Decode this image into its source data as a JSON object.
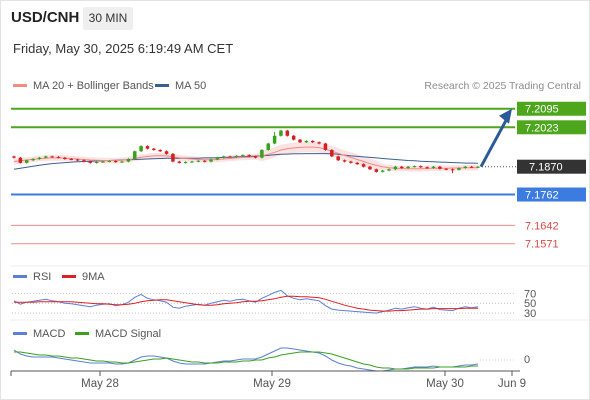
{
  "header": {
    "symbol": "USD/CNH",
    "timeframe": "30 MIN",
    "datetime": "Friday, May 30, 2025 6:19:49 AM CET"
  },
  "legend": {
    "main": [
      {
        "label": "MA 20 + Bollinger Bands",
        "color": "#f28b82"
      },
      {
        "label": "MA 50",
        "color": "#3a5f95"
      }
    ],
    "rsi": [
      {
        "label": "RSI",
        "color": "#5b7fd6"
      },
      {
        "label": "9MA",
        "color": "#e02020"
      }
    ],
    "macd": [
      {
        "label": "MACD",
        "color": "#5b7fd6"
      },
      {
        "label": "MACD Signal",
        "color": "#3aa01d"
      }
    ]
  },
  "watermark": "Research © 2025 Trading Central",
  "colors": {
    "up": "#3aa01d",
    "down": "#d42020",
    "resistance": "#4ea61c",
    "support": "#3c7be0",
    "target": "#f08a8a",
    "arrow": "#2a5a9a",
    "band": "#fadede"
  },
  "chart_data": [
    {
      "type": "candlestick",
      "pane": "price",
      "ylim": [
        7.15,
        7.216
      ],
      "x_ticks": [
        "May 28",
        "May 29",
        "May 30",
        "Jun 9"
      ],
      "current_price": "7.1870",
      "levels": [
        {
          "label": "7.2095",
          "value": 7.2095,
          "kind": "resistance",
          "badge": true
        },
        {
          "label": "7.2023",
          "value": 7.2023,
          "kind": "resistance",
          "badge": true
        },
        {
          "label": "7.1762",
          "value": 7.1762,
          "kind": "support",
          "badge": true
        },
        {
          "label": "7.1642",
          "value": 7.1642,
          "kind": "target",
          "badge": false
        },
        {
          "label": "7.1571",
          "value": 7.1571,
          "kind": "target",
          "badge": false
        }
      ],
      "forecast": {
        "from": 7.187,
        "to": 7.2095
      },
      "close": [
        7.1905,
        7.1885,
        7.1895,
        7.19,
        7.1905,
        7.191,
        7.1908,
        7.1905,
        7.19,
        7.1898,
        7.1895,
        7.189,
        7.1885,
        7.1888,
        7.189,
        7.1892,
        7.1888,
        7.189,
        7.19,
        7.193,
        7.195,
        7.194,
        7.1935,
        7.193,
        7.192,
        7.189,
        7.1885,
        7.1888,
        7.189,
        7.1893,
        7.189,
        7.1898,
        7.1905,
        7.191,
        7.1908,
        7.1912,
        7.1915,
        7.191,
        7.1905,
        7.1935,
        7.196,
        7.199,
        7.201,
        7.199,
        7.1975,
        7.1965,
        7.197,
        7.1965,
        7.196,
        7.1935,
        7.191,
        7.1895,
        7.189,
        7.1885,
        7.188,
        7.187,
        7.186,
        7.185,
        7.1855,
        7.186,
        7.187,
        7.1865,
        7.187,
        7.1872,
        7.1868,
        7.1865,
        7.187,
        7.1862,
        7.186,
        7.1858,
        7.1865,
        7.187,
        7.1868,
        7.187
      ],
      "series": [
        {
          "name": "MA 50",
          "values": [
            7.186,
            7.1864,
            7.1868,
            7.1872,
            7.1876,
            7.1879,
            7.1882,
            7.1884,
            7.1886,
            7.1888,
            7.1889,
            7.189,
            7.1891,
            7.1892,
            7.1893,
            7.1894,
            7.1895,
            7.1896,
            7.1897,
            7.1898,
            7.1899,
            7.19,
            7.1901,
            7.1902,
            7.1903,
            7.1903,
            7.1903,
            7.1903,
            7.1903,
            7.1903,
            7.1904,
            7.1904,
            7.1905,
            7.1906,
            7.1907,
            7.1908,
            7.1909,
            7.191,
            7.1911,
            7.1912,
            7.1914,
            7.1916,
            7.1918,
            7.1919,
            7.192,
            7.192,
            7.1921,
            7.1921,
            7.1921,
            7.1921,
            7.192,
            7.1918,
            7.1915,
            7.1912,
            7.191,
            7.1908,
            7.1906,
            7.1904,
            7.1902,
            7.19,
            7.1898,
            7.1896,
            7.1894,
            7.1893,
            7.1891,
            7.189,
            7.1889,
            7.1888,
            7.1887,
            7.1886,
            7.1885,
            7.1884,
            7.1884,
            7.1883
          ]
        },
        {
          "name": "MA 20",
          "values": [
            7.189,
            7.1893,
            7.1896,
            7.1899,
            7.1901,
            7.1903,
            7.1904,
            7.1904,
            7.1903,
            7.1902,
            7.19,
            7.1898,
            7.1896,
            7.1895,
            7.1894,
            7.1894,
            7.1894,
            7.1895,
            7.1897,
            7.1902,
            7.1907,
            7.191,
            7.1912,
            7.1913,
            7.1912,
            7.1909,
            7.1905,
            7.1902,
            7.19,
            7.1898,
            7.1897,
            7.1897,
            7.1898,
            7.19,
            7.1902,
            7.1904,
            7.1906,
            7.1907,
            7.1908,
            7.1912,
            7.1918,
            7.1926,
            7.1935,
            7.194,
            7.1943,
            7.1945,
            7.1946,
            7.1946,
            7.1944,
            7.1938,
            7.193,
            7.1922,
            7.1914,
            7.1906,
            7.1898,
            7.189,
            7.1882,
            7.1875,
            7.187,
            7.1866,
            7.1864,
            7.1863,
            7.1862,
            7.1862,
            7.1862,
            7.1863,
            7.1864,
            7.1864,
            7.1864,
            7.1865,
            7.1865,
            7.1866,
            7.1866,
            7.1866
          ]
        }
      ]
    },
    {
      "type": "line",
      "pane": "rsi",
      "y_ticks": [
        "70",
        "50",
        "30"
      ],
      "series": [
        {
          "name": "RSI",
          "values": [
            55,
            48,
            52,
            54,
            56,
            58,
            55,
            53,
            50,
            49,
            47,
            45,
            43,
            46,
            48,
            49,
            45,
            47,
            52,
            62,
            68,
            60,
            57,
            55,
            52,
            42,
            40,
            44,
            46,
            48,
            46,
            50,
            53,
            56,
            54,
            57,
            58,
            55,
            52,
            60,
            66,
            72,
            76,
            65,
            60,
            57,
            59,
            57,
            55,
            45,
            38,
            36,
            35,
            34,
            33,
            32,
            31,
            30,
            33,
            36,
            40,
            38,
            41,
            43,
            40,
            38,
            42,
            37,
            36,
            35,
            40,
            43,
            41,
            43
          ]
        },
        {
          "name": "9MA",
          "values": [
            52,
            52,
            52,
            52,
            53,
            53,
            53,
            53,
            53,
            53,
            52,
            51,
            50,
            49,
            49,
            48,
            47,
            47,
            48,
            50,
            53,
            55,
            56,
            57,
            57,
            55,
            53,
            51,
            49,
            47,
            46,
            46,
            47,
            49,
            50,
            51,
            53,
            54,
            54,
            55,
            57,
            59,
            62,
            64,
            64,
            63,
            63,
            62,
            61,
            58,
            54,
            50,
            46,
            43,
            40,
            38,
            36,
            35,
            34,
            34,
            35,
            35,
            36,
            37,
            38,
            38,
            39,
            39,
            39,
            39,
            39,
            40,
            40,
            40
          ]
        }
      ]
    },
    {
      "type": "line",
      "pane": "macd",
      "y_ticks": [
        "0"
      ],
      "series": [
        {
          "name": "MACD",
          "values": [
            0.001,
            0.0006,
            0.0004,
            0.0003,
            0.0003,
            0.0003,
            0.0003,
            0.0002,
            0.0001,
            0.0,
            -0.0001,
            -0.0002,
            -0.0003,
            -0.0003,
            -0.0003,
            -0.0003,
            -0.0004,
            -0.0004,
            -0.0003,
            0.0,
            0.0003,
            0.0004,
            0.0004,
            0.0003,
            0.0002,
            -0.0001,
            -0.0003,
            -0.0004,
            -0.0004,
            -0.0004,
            -0.0004,
            -0.0003,
            -0.0002,
            -0.0001,
            -0.0001,
            0.0,
            0.0001,
            0.0001,
            0.0001,
            0.0003,
            0.0006,
            0.0009,
            0.0012,
            0.0012,
            0.0011,
            0.001,
            0.0009,
            0.0008,
            0.0007,
            0.0004,
            0.0,
            -0.0003,
            -0.0005,
            -0.0006,
            -0.0008,
            -0.0009,
            -0.001,
            -0.0011,
            -0.0011,
            -0.001,
            -0.0009,
            -0.0009,
            -0.0008,
            -0.0007,
            -0.0007,
            -0.0007,
            -0.0006,
            -0.0007,
            -0.0007,
            -0.0007,
            -0.0006,
            -0.0005,
            -0.0005,
            -0.0004
          ]
        },
        {
          "name": "MACD Signal",
          "values": [
            0.0008,
            0.0008,
            0.0007,
            0.0006,
            0.0005,
            0.0005,
            0.0004,
            0.0004,
            0.0003,
            0.0002,
            0.0002,
            0.0001,
            0.0,
            -0.0001,
            -0.0001,
            -0.0002,
            -0.0002,
            -0.0003,
            -0.0003,
            -0.0002,
            -0.0001,
            0.0,
            0.0001,
            0.0001,
            0.0002,
            0.0001,
            0.0,
            -0.0001,
            -0.0002,
            -0.0002,
            -0.0003,
            -0.0003,
            -0.0003,
            -0.0002,
            -0.0002,
            -0.0002,
            -0.0001,
            -0.0001,
            0.0,
            0.0,
            0.0002,
            0.0003,
            0.0005,
            0.0006,
            0.0007,
            0.0008,
            0.0008,
            0.0008,
            0.0008,
            0.0007,
            0.0006,
            0.0004,
            0.0002,
            0.0,
            -0.0002,
            -0.0004,
            -0.0005,
            -0.0007,
            -0.0008,
            -0.0008,
            -0.0009,
            -0.0009,
            -0.0009,
            -0.0008,
            -0.0008,
            -0.0008,
            -0.0008,
            -0.0007,
            -0.0007,
            -0.0007,
            -0.0007,
            -0.0007,
            -0.0006,
            -0.0006
          ]
        }
      ]
    }
  ]
}
